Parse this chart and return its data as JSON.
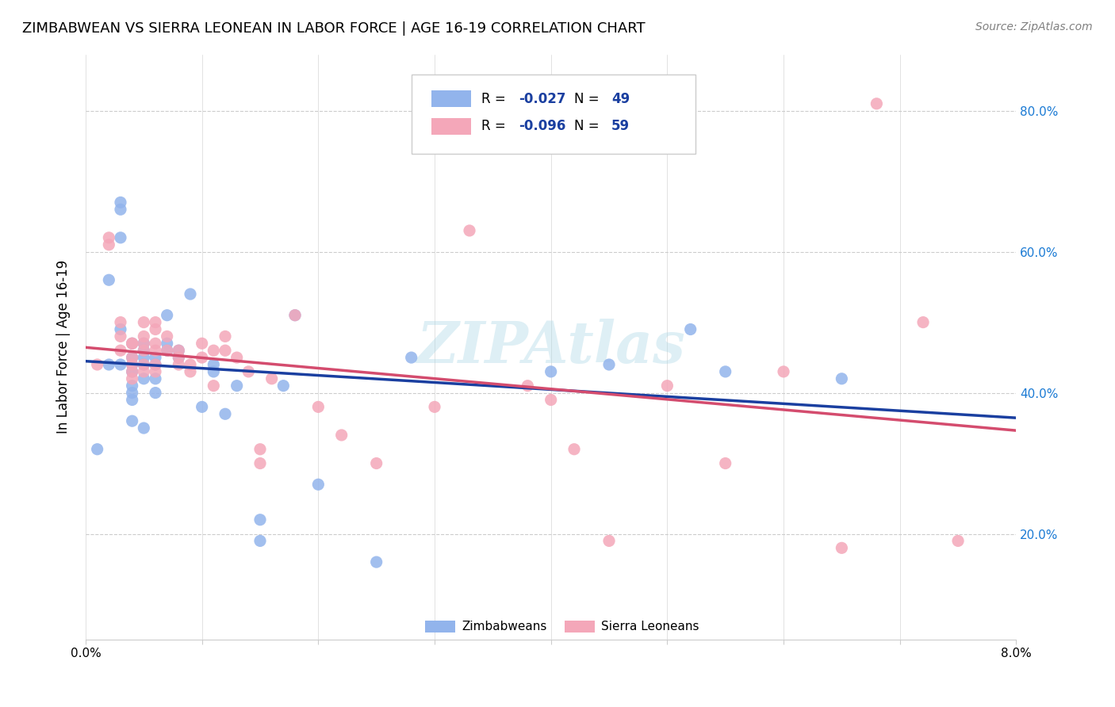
{
  "title": "ZIMBABWEAN VS SIERRA LEONEAN IN LABOR FORCE | AGE 16-19 CORRELATION CHART",
  "source": "Source: ZipAtlas.com",
  "ylabel": "In Labor Force | Age 16-19",
  "ylabel_ticks": [
    "20.0%",
    "40.0%",
    "60.0%",
    "80.0%"
  ],
  "ylabel_tick_vals": [
    0.2,
    0.4,
    0.6,
    0.8
  ],
  "xmin": 0.0,
  "xmax": 0.08,
  "ymin": 0.05,
  "ymax": 0.88,
  "blue_R": -0.027,
  "blue_N": 49,
  "pink_R": -0.096,
  "pink_N": 59,
  "blue_color": "#92b4ec",
  "pink_color": "#f4a7b9",
  "blue_line_color": "#1a3fa0",
  "pink_line_color": "#d44c6e",
  "watermark": "ZIPAtlas",
  "blue_x": [
    0.001,
    0.002,
    0.002,
    0.003,
    0.003,
    0.003,
    0.003,
    0.003,
    0.004,
    0.004,
    0.004,
    0.004,
    0.004,
    0.004,
    0.004,
    0.004,
    0.005,
    0.005,
    0.005,
    0.005,
    0.005,
    0.005,
    0.006,
    0.006,
    0.006,
    0.006,
    0.007,
    0.007,
    0.007,
    0.008,
    0.008,
    0.009,
    0.01,
    0.011,
    0.011,
    0.012,
    0.013,
    0.015,
    0.015,
    0.017,
    0.018,
    0.02,
    0.025,
    0.028,
    0.04,
    0.045,
    0.052,
    0.055,
    0.065
  ],
  "blue_y": [
    0.32,
    0.56,
    0.44,
    0.67,
    0.66,
    0.62,
    0.49,
    0.44,
    0.47,
    0.45,
    0.44,
    0.43,
    0.41,
    0.4,
    0.39,
    0.36,
    0.47,
    0.46,
    0.45,
    0.44,
    0.42,
    0.35,
    0.45,
    0.44,
    0.42,
    0.4,
    0.51,
    0.47,
    0.46,
    0.46,
    0.45,
    0.54,
    0.38,
    0.44,
    0.43,
    0.37,
    0.41,
    0.22,
    0.19,
    0.41,
    0.51,
    0.27,
    0.16,
    0.45,
    0.43,
    0.44,
    0.49,
    0.43,
    0.42
  ],
  "pink_x": [
    0.001,
    0.002,
    0.002,
    0.003,
    0.003,
    0.003,
    0.004,
    0.004,
    0.004,
    0.004,
    0.004,
    0.004,
    0.005,
    0.005,
    0.005,
    0.005,
    0.005,
    0.005,
    0.006,
    0.006,
    0.006,
    0.006,
    0.006,
    0.006,
    0.007,
    0.007,
    0.008,
    0.008,
    0.008,
    0.009,
    0.009,
    0.01,
    0.01,
    0.011,
    0.011,
    0.012,
    0.012,
    0.013,
    0.014,
    0.015,
    0.015,
    0.016,
    0.018,
    0.02,
    0.022,
    0.025,
    0.03,
    0.033,
    0.038,
    0.04,
    0.042,
    0.045,
    0.05,
    0.055,
    0.06,
    0.065,
    0.068,
    0.072,
    0.075
  ],
  "pink_y": [
    0.44,
    0.62,
    0.61,
    0.5,
    0.48,
    0.46,
    0.47,
    0.47,
    0.45,
    0.44,
    0.43,
    0.42,
    0.5,
    0.48,
    0.47,
    0.46,
    0.44,
    0.43,
    0.5,
    0.49,
    0.47,
    0.46,
    0.44,
    0.43,
    0.48,
    0.46,
    0.46,
    0.45,
    0.44,
    0.44,
    0.43,
    0.47,
    0.45,
    0.46,
    0.41,
    0.48,
    0.46,
    0.45,
    0.43,
    0.32,
    0.3,
    0.42,
    0.51,
    0.38,
    0.34,
    0.3,
    0.38,
    0.63,
    0.41,
    0.39,
    0.32,
    0.19,
    0.41,
    0.3,
    0.43,
    0.18,
    0.81,
    0.5,
    0.19
  ]
}
